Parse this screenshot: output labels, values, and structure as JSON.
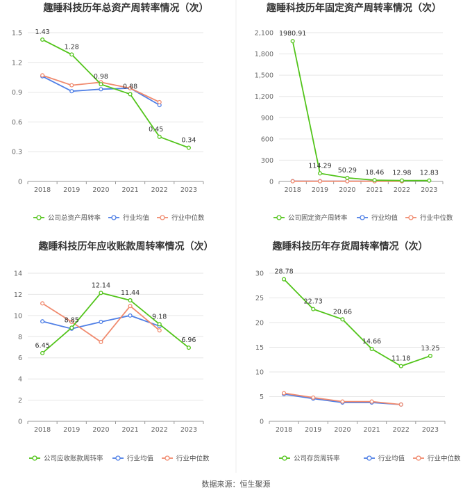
{
  "footer": {
    "source": "数据来源：恒生聚源"
  },
  "legend_colors": {
    "company": "#52c41a",
    "average": "#4f7fe6",
    "median": "#f08a6e"
  },
  "chart_data": [
    {
      "type": "line",
      "title": "趣睡科技历年总资产周转率情况（次）",
      "categories": [
        "2018",
        "2019",
        "2020",
        "2021",
        "2022",
        "2023"
      ],
      "ylim": [
        0,
        1.5
      ],
      "yticks": [
        "0",
        "0.3",
        "0.6",
        "0.9",
        "1.2",
        "1.5"
      ],
      "ytick_values": [
        0,
        0.3,
        0.6,
        0.9,
        1.2,
        1.5
      ],
      "series": [
        {
          "name": "公司总资产周转率",
          "values": [
            1.43,
            1.28,
            0.98,
            0.88,
            0.45,
            0.34
          ],
          "labels": [
            "1.43",
            "1.28",
            "0.98",
            "0.88",
            "0.45",
            "0.34"
          ]
        },
        {
          "name": "行业均值",
          "values": [
            1.06,
            0.91,
            0.93,
            0.94,
            0.77,
            null
          ]
        },
        {
          "name": "行业中位数",
          "values": [
            1.07,
            0.97,
            1.0,
            0.94,
            0.8,
            null
          ]
        }
      ]
    },
    {
      "type": "line",
      "title": "趣睡科技历年固定资产周转率情况（次）",
      "categories": [
        "2018",
        "2019",
        "2020",
        "2021",
        "2022",
        "2023"
      ],
      "ylim": [
        0,
        2100
      ],
      "yticks": [
        "0",
        "300",
        "600",
        "900",
        "1,200",
        "1,500",
        "1,800",
        "2,100"
      ],
      "ytick_values": [
        0,
        300,
        600,
        900,
        1200,
        1500,
        1800,
        2100
      ],
      "series": [
        {
          "name": "公司固定资产周转率",
          "values": [
            1980.91,
            114.29,
            50.29,
            18.46,
            12.98,
            12.83
          ],
          "labels": [
            "1980.91",
            "114.29",
            "50.29",
            "18.46",
            "12.98",
            "12.83"
          ]
        },
        {
          "name": "行业均值",
          "values": [
            5,
            4,
            4,
            4,
            4,
            null
          ]
        },
        {
          "name": "行业中位数",
          "values": [
            3,
            3,
            3,
            3,
            3,
            null
          ]
        }
      ]
    },
    {
      "type": "line",
      "title": "趣睡科技历年应收账款周转率情况（次）",
      "categories": [
        "2018",
        "2019",
        "2020",
        "2021",
        "2022",
        "2023"
      ],
      "ylim": [
        0,
        14
      ],
      "yticks": [
        "0",
        "2",
        "4",
        "6",
        "8",
        "10",
        "12",
        "14"
      ],
      "ytick_values": [
        0,
        2,
        4,
        6,
        8,
        10,
        12,
        14
      ],
      "series": [
        {
          "name": "公司应收账款周转率",
          "values": [
            6.45,
            8.85,
            12.14,
            11.44,
            9.18,
            6.96
          ],
          "labels": [
            "6.45",
            "8.85",
            "12.14",
            "11.44",
            "9.18",
            "6.96"
          ]
        },
        {
          "name": "行业均值",
          "values": [
            9.45,
            8.75,
            9.4,
            10.0,
            9.0,
            null
          ]
        },
        {
          "name": "行业中位数",
          "values": [
            11.15,
            9.4,
            7.5,
            10.9,
            8.6,
            null
          ]
        }
      ]
    },
    {
      "type": "line",
      "title": "趣睡科技历年存货周转率情况（次）",
      "categories": [
        "2018",
        "2019",
        "2020",
        "2021",
        "2022",
        "2023"
      ],
      "ylim": [
        0,
        30
      ],
      "yticks": [
        "0",
        "5",
        "10",
        "15",
        "20",
        "25",
        "30"
      ],
      "ytick_values": [
        0,
        5,
        10,
        15,
        20,
        25,
        30
      ],
      "series": [
        {
          "name": "公司存货周转率",
          "values": [
            28.78,
            22.73,
            20.66,
            14.66,
            11.18,
            13.25
          ],
          "labels": [
            "28.78",
            "22.73",
            "20.66",
            "14.66",
            "11.18",
            "13.25"
          ]
        },
        {
          "name": "行业均值",
          "values": [
            5.5,
            4.6,
            3.8,
            3.8,
            3.4,
            null
          ]
        },
        {
          "name": "行业中位数",
          "values": [
            5.7,
            4.8,
            4.0,
            4.0,
            3.4,
            null
          ]
        }
      ]
    }
  ]
}
